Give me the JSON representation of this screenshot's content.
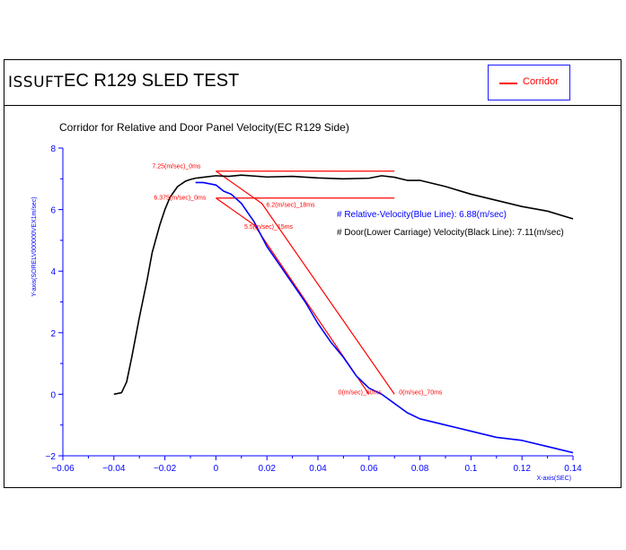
{
  "header": {
    "logo_text": "ISSUFT",
    "title": "EC R129  SLED TEST",
    "legend_label": "Corridor",
    "legend_color": "#ff0000"
  },
  "chart_data": {
    "type": "line",
    "title": "Corridor for Relative and Door Panel Velocity(EC R129 Side)",
    "xlabel": "X-axis(SEC)",
    "ylabel": "Y-axis(SORELV000000VEX1m/sec)",
    "xlim": [
      -0.06,
      0.14
    ],
    "ylim": [
      -2,
      8
    ],
    "xticks": [
      "−0.06",
      "−0.04",
      "−0.02",
      "0",
      "0.02",
      "0.04",
      "0.06",
      "0.08",
      "0.1",
      "0.12",
      "0.14"
    ],
    "xtick_values": [
      -0.06,
      -0.04,
      -0.02,
      0,
      0.02,
      0.04,
      0.06,
      0.08,
      0.1,
      0.12,
      0.14
    ],
    "yticks": [
      "−2",
      "0",
      "2",
      "4",
      "6",
      "8"
    ],
    "ytick_values": [
      -2,
      0,
      2,
      4,
      6,
      8
    ],
    "annotations": {
      "blue_text": "# Relative-Velocity(Blue Line): 6.88(m/sec)",
      "black_text": "# Door(Lower Carriage) Velocity(Black Line): 7.11(m/sec)",
      "corridor_labels": [
        "7.25(m/sec)_0ms",
        "6.375(m/sec)_0ms",
        "6.2(m/sec)_18ms",
        "5.5(m/sec)_15ms",
        "0(m/sec)_60ms",
        "0(m/sec)_70ms"
      ]
    },
    "colors": {
      "relative": "#0000ff",
      "door": "#000000",
      "corridor": "#ff0000",
      "axis": "#0000ff"
    },
    "series": [
      {
        "name": "Door(Lower Carriage) Velocity",
        "color": "#000000",
        "x": [
          -0.04,
          -0.037,
          -0.035,
          -0.033,
          -0.03,
          -0.027,
          -0.025,
          -0.022,
          -0.02,
          -0.018,
          -0.015,
          -0.012,
          -0.01,
          -0.008,
          -0.005,
          0,
          0.005,
          0.01,
          0.02,
          0.03,
          0.04,
          0.05,
          0.06,
          0.065,
          0.07,
          0.075,
          0.08,
          0.09,
          0.1,
          0.11,
          0.12,
          0.13,
          0.14
        ],
        "y": [
          0,
          0.05,
          0.4,
          1.2,
          2.5,
          3.7,
          4.6,
          5.5,
          6.0,
          6.4,
          6.75,
          6.92,
          6.98,
          7.02,
          7.05,
          7.1,
          7.08,
          7.12,
          7.06,
          7.08,
          7.03,
          7.0,
          7.02,
          7.1,
          7.05,
          6.95,
          6.95,
          6.75,
          6.5,
          6.3,
          6.1,
          5.95,
          5.7
        ]
      },
      {
        "name": "Relative-Velocity",
        "color": "#0000ff",
        "x": [
          -0.008,
          -0.005,
          0,
          0.003,
          0.006,
          0.01,
          0.015,
          0.02,
          0.025,
          0.03,
          0.035,
          0.04,
          0.045,
          0.05,
          0.055,
          0.06,
          0.065,
          0.07,
          0.075,
          0.08,
          0.09,
          0.1,
          0.11,
          0.12,
          0.13,
          0.14
        ],
        "y": [
          6.88,
          6.88,
          6.8,
          6.6,
          6.5,
          6.2,
          5.6,
          4.8,
          4.2,
          3.6,
          3.0,
          2.3,
          1.7,
          1.2,
          0.6,
          0.2,
          0.0,
          -0.3,
          -0.6,
          -0.8,
          -1.0,
          -1.2,
          -1.4,
          -1.5,
          -1.7,
          -1.9
        ]
      }
    ],
    "corridor": [
      {
        "x": [
          0,
          0.07
        ],
        "y": [
          7.25,
          7.25
        ]
      },
      {
        "x": [
          0,
          0.07
        ],
        "y": [
          6.375,
          6.375
        ]
      },
      {
        "x": [
          0,
          0.018,
          0.07
        ],
        "y": [
          7.25,
          6.2,
          0
        ]
      },
      {
        "x": [
          0,
          0.015,
          0.06
        ],
        "y": [
          6.375,
          5.5,
          0
        ]
      }
    ]
  }
}
